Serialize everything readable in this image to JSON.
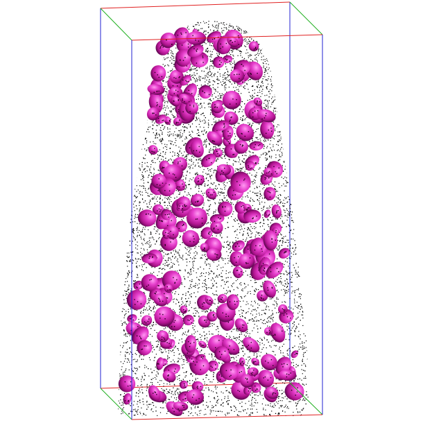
{
  "scene": {
    "background": "#ffffff",
    "particle_color": "#000000",
    "blob_color": "#d21fb8",
    "blob_highlight": "#ff8af0",
    "blob_shadow": "#6e0a5c",
    "axis_colors": {
      "x": "#e02020",
      "y": "#20b020",
      "z": "#2020d0"
    }
  }
}
